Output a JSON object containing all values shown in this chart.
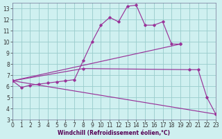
{
  "xlabel": "Windchill (Refroidissement éolien,°C)",
  "xlim": [
    0,
    23
  ],
  "ylim": [
    3,
    13.5
  ],
  "yticks": [
    3,
    4,
    5,
    6,
    7,
    8,
    9,
    10,
    11,
    12,
    13
  ],
  "xticks": [
    0,
    1,
    2,
    3,
    4,
    5,
    6,
    7,
    8,
    9,
    10,
    11,
    12,
    13,
    14,
    15,
    16,
    17,
    18,
    19,
    20,
    21,
    22,
    23
  ],
  "background_color": "#cff0f0",
  "grid_color": "#99cccc",
  "line_color": "#993399",
  "line1_x": [
    0,
    1,
    2,
    3,
    4,
    5,
    6,
    7,
    8,
    9,
    10,
    11,
    12,
    13,
    14,
    15,
    16,
    17,
    18,
    19
  ],
  "line1_y": [
    6.5,
    5.9,
    6.1,
    6.2,
    6.3,
    6.4,
    6.5,
    6.6,
    8.3,
    10.0,
    11.5,
    12.2,
    11.8,
    13.2,
    13.3,
    11.5,
    11.5,
    11.8,
    9.8,
    9.8
  ],
  "line2_x": [
    0,
    19
  ],
  "line2_y": [
    6.5,
    9.8
  ],
  "line3_x": [
    0,
    8,
    20,
    21,
    22,
    23
  ],
  "line3_y": [
    6.5,
    7.6,
    7.5,
    7.5,
    5.0,
    3.5
  ],
  "line4_x": [
    0,
    23
  ],
  "line4_y": [
    6.5,
    3.5
  ],
  "tick_fontsize": 5.5,
  "xlabel_fontsize": 5.5
}
